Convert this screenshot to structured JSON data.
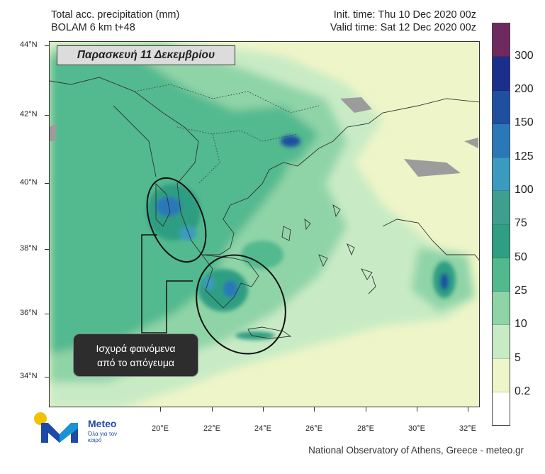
{
  "header": {
    "title_line1": "Total acc. precipitation (mm)",
    "title_line2": "BOLAM 6 km t+48",
    "init_time": "Init. time: Thu 10 Dec 2020 00z",
    "valid_time": "Valid time: Sat 12 Dec 2020 00z"
  },
  "map": {
    "title": "Παρασκευή 11 Δεκεμβρίου",
    "callout_line1": "Ισχυρά φαινόμενα",
    "callout_line2": "από το απόγευμα",
    "lat_labels": [
      "44°N",
      "42°N",
      "40°N",
      "38°N",
      "36°N",
      "34°N"
    ],
    "lon_labels": [
      "20°E",
      "22°E",
      "24°E",
      "26°E",
      "28°E",
      "30°E",
      "32°E"
    ]
  },
  "legend": {
    "labels": [
      "300",
      "200",
      "150",
      "125",
      "100",
      "75",
      "50",
      "25",
      "10",
      "5",
      "0.2"
    ],
    "colors": [
      "#6e2a5e",
      "#1a2f8c",
      "#1f50a0",
      "#2b78b8",
      "#3b9bbf",
      "#3f9f8f",
      "#2f9e82",
      "#52b98f",
      "#8fd4a7",
      "#c8ebc5",
      "#eef5c8",
      "#ffffff"
    ]
  },
  "logo": {
    "name": "Meteo",
    "tagline": "Όλα για τον καιρό"
  },
  "footer": {
    "credit": "National Observatory of Athens, Greece - meteo.gr"
  }
}
